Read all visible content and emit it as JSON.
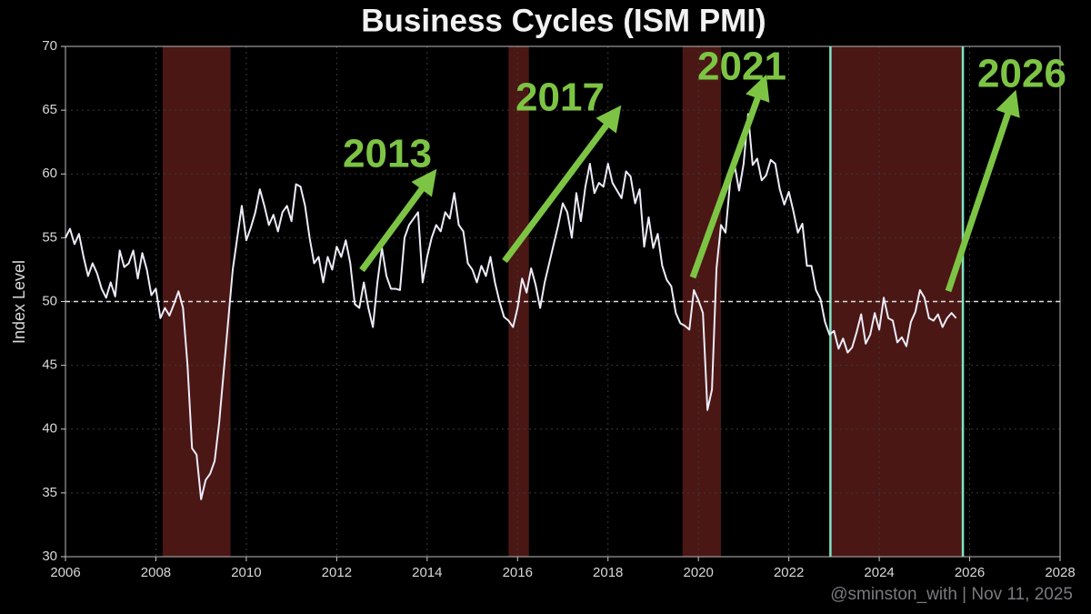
{
  "chart_data": {
    "type": "line",
    "title": "Business Cycles (ISM PMI)",
    "y_label": "Index Level",
    "source": "@sminston_with  |  Nov 11, 2025",
    "annotations": [
      "2013",
      "2017",
      "2021",
      "2026"
    ],
    "color": "#ececf8",
    "annotation_color": "#7dc444",
    "shade_color": "#4a1715",
    "vline_color": "#7fe3c4",
    "shaded_ranges": [
      [
        2008.15,
        2009.65
      ],
      [
        2015.8,
        2016.25
      ],
      [
        2019.65,
        2020.5
      ],
      [
        2022.92,
        2025.85
      ]
    ],
    "vlines": [
      2022.92,
      2025.85
    ],
    "reference_line": 50,
    "xlim": [
      2006,
      2028
    ],
    "xticks": [
      2006,
      2008,
      2010,
      2012,
      2014,
      2016,
      2018,
      2020,
      2022,
      2024,
      2026,
      2028
    ],
    "ylim": [
      30,
      70
    ],
    "yticks": [
      30,
      35,
      40,
      45,
      50,
      55,
      60,
      65,
      70
    ],
    "grid": true,
    "x": [
      2006.0,
      2006.1,
      2006.2,
      2006.3,
      2006.4,
      2006.5,
      2006.6,
      2006.7,
      2006.8,
      2006.9,
      2007.0,
      2007.1,
      2007.2,
      2007.3,
      2007.4,
      2007.5,
      2007.6,
      2007.7,
      2007.8,
      2007.9,
      2008.0,
      2008.1,
      2008.2,
      2008.3,
      2008.4,
      2008.5,
      2008.6,
      2008.7,
      2008.8,
      2008.9,
      2009.0,
      2009.1,
      2009.2,
      2009.3,
      2009.4,
      2009.5,
      2009.6,
      2009.7,
      2009.8,
      2009.9,
      2010.0,
      2010.1,
      2010.2,
      2010.3,
      2010.4,
      2010.5,
      2010.6,
      2010.7,
      2010.8,
      2010.9,
      2011.0,
      2011.1,
      2011.2,
      2011.3,
      2011.4,
      2011.5,
      2011.6,
      2011.7,
      2011.8,
      2011.9,
      2012.0,
      2012.1,
      2012.2,
      2012.3,
      2012.4,
      2012.5,
      2012.6,
      2012.7,
      2012.8,
      2012.9,
      2013.0,
      2013.1,
      2013.2,
      2013.3,
      2013.4,
      2013.5,
      2013.6,
      2013.7,
      2013.8,
      2013.9,
      2014.0,
      2014.1,
      2014.2,
      2014.3,
      2014.4,
      2014.5,
      2014.6,
      2014.7,
      2014.8,
      2014.9,
      2015.0,
      2015.1,
      2015.2,
      2015.3,
      2015.4,
      2015.5,
      2015.6,
      2015.7,
      2015.8,
      2015.9,
      2016.0,
      2016.1,
      2016.2,
      2016.3,
      2016.4,
      2016.5,
      2016.6,
      2016.7,
      2016.8,
      2016.9,
      2017.0,
      2017.1,
      2017.2,
      2017.3,
      2017.4,
      2017.5,
      2017.6,
      2017.7,
      2017.8,
      2017.9,
      2018.0,
      2018.1,
      2018.2,
      2018.3,
      2018.4,
      2018.5,
      2018.6,
      2018.7,
      2018.8,
      2018.9,
      2019.0,
      2019.1,
      2019.2,
      2019.3,
      2019.4,
      2019.5,
      2019.6,
      2019.7,
      2019.8,
      2019.9,
      2020.0,
      2020.1,
      2020.2,
      2020.3,
      2020.4,
      2020.5,
      2020.6,
      2020.7,
      2020.8,
      2020.9,
      2021.0,
      2021.1,
      2021.2,
      2021.3,
      2021.4,
      2021.5,
      2021.6,
      2021.7,
      2021.8,
      2021.9,
      2022.0,
      2022.1,
      2022.2,
      2022.3,
      2022.4,
      2022.5,
      2022.6,
      2022.7,
      2022.8,
      2022.9,
      2023.0,
      2023.1,
      2023.2,
      2023.3,
      2023.4,
      2023.5,
      2023.6,
      2023.7,
      2023.8,
      2023.9,
      2024.0,
      2024.1,
      2024.2,
      2024.3,
      2024.4,
      2024.5,
      2024.6,
      2024.7,
      2024.8,
      2024.9,
      2025.0,
      2025.1,
      2025.2,
      2025.3,
      2025.4,
      2025.5,
      2025.6,
      2025.7
    ],
    "values": [
      55.0,
      55.7,
      54.5,
      55.3,
      53.5,
      52.0,
      53.0,
      52.2,
      51.0,
      50.3,
      51.5,
      50.4,
      54.0,
      52.7,
      53.0,
      54.0,
      51.8,
      53.8,
      52.5,
      50.5,
      51.0,
      48.7,
      49.5,
      48.9,
      49.8,
      50.8,
      49.5,
      45.0,
      38.5,
      38.0,
      34.5,
      36.0,
      36.5,
      37.5,
      40.5,
      44.5,
      48.5,
      52.5,
      55.0,
      57.5,
      54.8,
      55.8,
      57.0,
      58.8,
      57.5,
      56.0,
      56.8,
      55.5,
      57.0,
      57.5,
      56.3,
      59.2,
      59.0,
      57.5,
      55.0,
      53.0,
      53.5,
      51.5,
      53.5,
      52.5,
      54.3,
      53.5,
      54.8,
      53.0,
      49.8,
      49.5,
      51.5,
      49.5,
      48.0,
      51.5,
      54.2,
      52.0,
      51.0,
      51.0,
      50.9,
      55.0,
      56.0,
      56.5,
      57.0,
      51.5,
      53.5,
      55.0,
      56.0,
      55.5,
      57.0,
      56.5,
      58.5,
      56.0,
      55.5,
      53.0,
      52.5,
      51.5,
      52.8,
      52.0,
      53.5,
      51.5,
      50.0,
      48.8,
      48.5,
      48.0,
      49.5,
      51.8,
      50.7,
      52.6,
      51.3,
      49.5,
      51.5,
      53.0,
      54.5,
      56.0,
      57.7,
      57.0,
      55.0,
      58.5,
      56.3,
      59.0,
      60.8,
      58.5,
      59.3,
      59.0,
      60.8,
      59.3,
      58.7,
      58.1,
      60.2,
      59.8,
      57.7,
      58.8,
      54.3,
      56.6,
      54.2,
      55.3,
      52.8,
      51.7,
      51.2,
      49.1,
      48.3,
      48.1,
      47.8,
      50.9,
      50.1,
      49.1,
      41.5,
      43.1,
      52.6,
      56.0,
      55.4,
      59.3,
      60.7,
      58.7,
      60.8,
      64.7,
      60.7,
      61.2,
      59.5,
      59.9,
      61.1,
      60.8,
      58.8,
      57.6,
      58.6,
      57.1,
      55.4,
      56.1,
      52.8,
      52.8,
      50.9,
      50.2,
      48.4,
      47.4,
      47.7,
      46.3,
      47.1,
      46.0,
      46.4,
      47.6,
      49.0,
      46.7,
      47.4,
      49.1,
      47.8,
      50.3,
      48.7,
      48.5,
      46.8,
      47.2,
      46.5,
      48.4,
      49.2,
      50.9,
      50.3,
      48.7,
      48.5,
      49.0,
      48.0,
      48.7,
      49.1,
      48.7
    ]
  }
}
